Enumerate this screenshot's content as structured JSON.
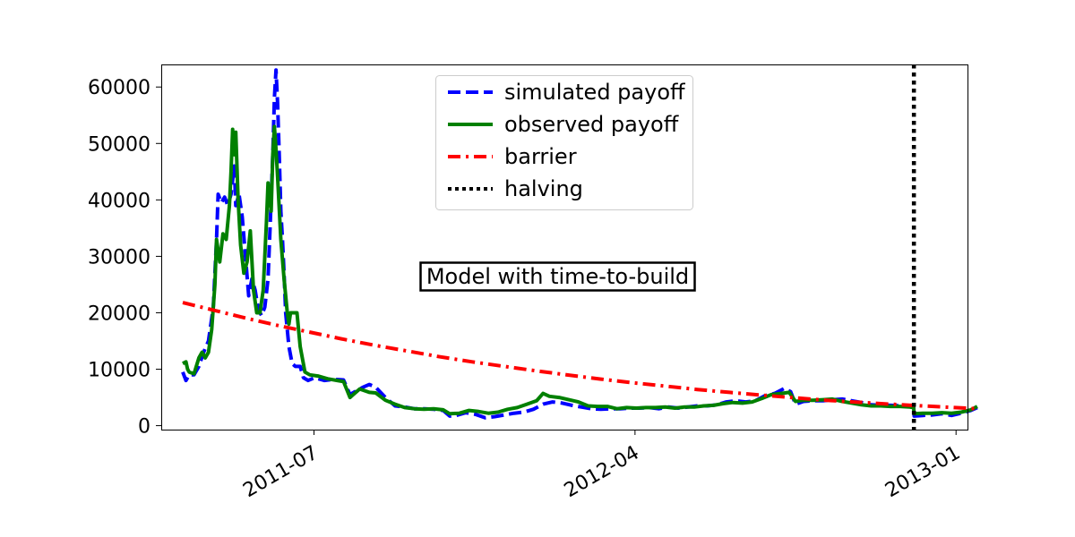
{
  "chart_data": {
    "type": "line",
    "title": "",
    "xlabel": "",
    "ylabel": "",
    "x_range": [
      0,
      23.7
    ],
    "ylim": [
      -700,
      64000
    ],
    "grid": false,
    "y_ticks": [
      {
        "value": 0,
        "label": "0"
      },
      {
        "value": 10000,
        "label": "10000"
      },
      {
        "value": 20000,
        "label": "20000"
      },
      {
        "value": 30000,
        "label": "30000"
      },
      {
        "value": 40000,
        "label": "40000"
      },
      {
        "value": 50000,
        "label": "50000"
      },
      {
        "value": 60000,
        "label": "60000"
      }
    ],
    "x_ticks": [
      {
        "value": 4.08,
        "label": "2011-07"
      },
      {
        "value": 14.06,
        "label": "2012-04"
      },
      {
        "value": 24.04,
        "label": "2013-01"
      }
    ],
    "legend_position": "top-center",
    "annotation": "Model with time-to-build",
    "halving": {
      "x": 22.73,
      "label": "halving",
      "color": "#000000"
    },
    "series": [
      {
        "name": "simulated payoff",
        "color": "#0000ff",
        "style": "dashed",
        "points": [
          [
            0.0,
            9500
          ],
          [
            0.1,
            8000
          ],
          [
            0.2,
            9000
          ],
          [
            0.35,
            9000
          ],
          [
            0.5,
            10500
          ],
          [
            0.65,
            13000
          ],
          [
            0.8,
            15000
          ],
          [
            0.95,
            21000
          ],
          [
            1.05,
            33000
          ],
          [
            1.1,
            41000
          ],
          [
            1.2,
            39500
          ],
          [
            1.3,
            40500
          ],
          [
            1.4,
            39000
          ],
          [
            1.5,
            41000
          ],
          [
            1.6,
            46000
          ],
          [
            1.65,
            39000
          ],
          [
            1.75,
            41000
          ],
          [
            1.85,
            37000
          ],
          [
            1.95,
            30000
          ],
          [
            2.05,
            23000
          ],
          [
            2.15,
            26000
          ],
          [
            2.25,
            24000
          ],
          [
            2.35,
            20500
          ],
          [
            2.45,
            19500
          ],
          [
            2.55,
            21000
          ],
          [
            2.65,
            26000
          ],
          [
            2.72,
            36000
          ],
          [
            2.8,
            48000
          ],
          [
            2.85,
            58000
          ],
          [
            2.9,
            63000
          ],
          [
            2.95,
            57000
          ],
          [
            3.0,
            48000
          ],
          [
            3.05,
            38000
          ],
          [
            3.1,
            33000
          ],
          [
            3.15,
            27000
          ],
          [
            3.2,
            20000
          ],
          [
            3.3,
            14000
          ],
          [
            3.4,
            11000
          ],
          [
            3.5,
            10500
          ],
          [
            3.65,
            10500
          ],
          [
            3.75,
            8500
          ],
          [
            3.9,
            8000
          ],
          [
            4.1,
            8500
          ],
          [
            4.4,
            8000
          ],
          [
            4.7,
            8200
          ],
          [
            5.0,
            8100
          ],
          [
            5.2,
            5500
          ],
          [
            5.35,
            6000
          ],
          [
            5.6,
            6800
          ],
          [
            5.8,
            7300
          ],
          [
            6.0,
            6800
          ],
          [
            6.3,
            5000
          ],
          [
            6.6,
            3500
          ],
          [
            6.9,
            3300
          ],
          [
            7.2,
            3000
          ],
          [
            7.5,
            3000
          ],
          [
            7.8,
            2900
          ],
          [
            8.1,
            2700
          ],
          [
            8.3,
            1700
          ],
          [
            8.5,
            1800
          ],
          [
            8.8,
            2300
          ],
          [
            9.1,
            2000
          ],
          [
            9.4,
            1400
          ],
          [
            9.7,
            1600
          ],
          [
            10.0,
            1900
          ],
          [
            10.3,
            2200
          ],
          [
            10.6,
            2400
          ],
          [
            10.9,
            2900
          ],
          [
            11.2,
            3800
          ],
          [
            11.5,
            4200
          ],
          [
            11.8,
            4000
          ],
          [
            12.1,
            3600
          ],
          [
            12.4,
            3300
          ],
          [
            12.7,
            3000
          ],
          [
            13.0,
            2900
          ],
          [
            13.3,
            3000
          ],
          [
            13.6,
            3000
          ],
          [
            13.9,
            3100
          ],
          [
            14.2,
            3100
          ],
          [
            14.5,
            3200
          ],
          [
            14.8,
            3000
          ],
          [
            15.1,
            3300
          ],
          [
            15.4,
            3100
          ],
          [
            15.7,
            3300
          ],
          [
            16.0,
            3500
          ],
          [
            16.3,
            3500
          ],
          [
            16.6,
            3700
          ],
          [
            16.9,
            4200
          ],
          [
            17.2,
            4400
          ],
          [
            17.5,
            4200
          ],
          [
            17.8,
            4400
          ],
          [
            18.1,
            5300
          ],
          [
            18.4,
            5700
          ],
          [
            18.7,
            6600
          ],
          [
            18.9,
            6000
          ],
          [
            19.05,
            3800
          ],
          [
            19.3,
            4300
          ],
          [
            19.6,
            4400
          ],
          [
            19.9,
            4400
          ],
          [
            20.2,
            4600
          ],
          [
            20.5,
            4700
          ],
          [
            20.8,
            4400
          ],
          [
            21.1,
            4100
          ],
          [
            21.4,
            3700
          ],
          [
            21.7,
            3600
          ],
          [
            22.0,
            3600
          ],
          [
            22.3,
            3500
          ],
          [
            22.6,
            3500
          ],
          [
            22.72,
            3400
          ],
          [
            22.74,
            1700
          ],
          [
            23.0,
            1800
          ],
          [
            23.3,
            1900
          ],
          [
            23.6,
            2100
          ],
          [
            23.9,
            1800
          ],
          [
            24.2,
            2200
          ],
          [
            24.5,
            2700
          ],
          [
            24.7,
            3200
          ]
        ]
      },
      {
        "name": "observed payoff",
        "color": "#008000",
        "style": "solid",
        "points": [
          [
            0.0,
            11000
          ],
          [
            0.1,
            11300
          ],
          [
            0.15,
            10000
          ],
          [
            0.2,
            9500
          ],
          [
            0.35,
            9200
          ],
          [
            0.5,
            12000
          ],
          [
            0.6,
            13000
          ],
          [
            0.7,
            12000
          ],
          [
            0.8,
            13000
          ],
          [
            0.9,
            17000
          ],
          [
            1.0,
            25000
          ],
          [
            1.05,
            33000
          ],
          [
            1.15,
            29000
          ],
          [
            1.25,
            34000
          ],
          [
            1.35,
            33000
          ],
          [
            1.45,
            39000
          ],
          [
            1.5,
            45000
          ],
          [
            1.55,
            52500
          ],
          [
            1.6,
            48000
          ],
          [
            1.65,
            52000
          ],
          [
            1.72,
            40000
          ],
          [
            1.8,
            32000
          ],
          [
            1.9,
            27000
          ],
          [
            2.0,
            29000
          ],
          [
            2.1,
            34500
          ],
          [
            2.2,
            24000
          ],
          [
            2.3,
            20000
          ],
          [
            2.4,
            20000
          ],
          [
            2.5,
            24000
          ],
          [
            2.6,
            36000
          ],
          [
            2.65,
            43000
          ],
          [
            2.75,
            38000
          ],
          [
            2.8,
            48000
          ],
          [
            2.85,
            53000
          ],
          [
            2.9,
            49000
          ],
          [
            2.95,
            44000
          ],
          [
            3.05,
            33000
          ],
          [
            3.15,
            26000
          ],
          [
            3.25,
            20000
          ],
          [
            3.3,
            18000
          ],
          [
            3.35,
            20000
          ],
          [
            3.55,
            20000
          ],
          [
            3.65,
            14000
          ],
          [
            3.8,
            9500
          ],
          [
            3.95,
            9000
          ],
          [
            4.2,
            8800
          ],
          [
            4.5,
            8300
          ],
          [
            4.8,
            8000
          ],
          [
            5.0,
            7800
          ],
          [
            5.2,
            5000
          ],
          [
            5.3,
            5500
          ],
          [
            5.5,
            6500
          ],
          [
            5.8,
            5900
          ],
          [
            6.0,
            5800
          ],
          [
            6.3,
            4500
          ],
          [
            6.6,
            3800
          ],
          [
            6.9,
            3200
          ],
          [
            7.2,
            3000
          ],
          [
            7.5,
            2900
          ],
          [
            7.8,
            3000
          ],
          [
            8.1,
            2800
          ],
          [
            8.3,
            2100
          ],
          [
            8.6,
            2200
          ],
          [
            8.9,
            2700
          ],
          [
            9.2,
            2500
          ],
          [
            9.5,
            2200
          ],
          [
            9.8,
            2400
          ],
          [
            10.1,
            2900
          ],
          [
            10.4,
            3200
          ],
          [
            10.7,
            3800
          ],
          [
            11.0,
            4400
          ],
          [
            11.2,
            5700
          ],
          [
            11.4,
            5200
          ],
          [
            11.7,
            5000
          ],
          [
            12.0,
            4600
          ],
          [
            12.3,
            4200
          ],
          [
            12.6,
            3500
          ],
          [
            12.9,
            3400
          ],
          [
            13.2,
            3400
          ],
          [
            13.5,
            3000
          ],
          [
            13.8,
            3200
          ],
          [
            14.1,
            3100
          ],
          [
            14.4,
            3200
          ],
          [
            14.7,
            3200
          ],
          [
            15.0,
            3300
          ],
          [
            15.3,
            3100
          ],
          [
            15.6,
            3300
          ],
          [
            15.9,
            3300
          ],
          [
            16.2,
            3500
          ],
          [
            16.5,
            3600
          ],
          [
            16.8,
            3900
          ],
          [
            17.1,
            4100
          ],
          [
            17.4,
            4000
          ],
          [
            17.7,
            4200
          ],
          [
            18.0,
            4800
          ],
          [
            18.3,
            5500
          ],
          [
            18.6,
            5700
          ],
          [
            18.85,
            5900
          ],
          [
            19.05,
            4300
          ],
          [
            19.3,
            4500
          ],
          [
            19.6,
            4500
          ],
          [
            19.9,
            4600
          ],
          [
            20.2,
            4700
          ],
          [
            20.5,
            4300
          ],
          [
            20.8,
            4000
          ],
          [
            21.1,
            3700
          ],
          [
            21.4,
            3500
          ],
          [
            21.7,
            3500
          ],
          [
            22.0,
            3400
          ],
          [
            22.3,
            3400
          ],
          [
            22.6,
            3300
          ],
          [
            22.72,
            3200
          ],
          [
            22.74,
            2100
          ],
          [
            23.0,
            2200
          ],
          [
            23.3,
            2200
          ],
          [
            23.6,
            2300
          ],
          [
            23.9,
            2200
          ],
          [
            24.2,
            2400
          ],
          [
            24.5,
            2800
          ],
          [
            24.7,
            3400
          ]
        ]
      },
      {
        "name": "barrier",
        "color": "#ff0000",
        "style": "dashdot",
        "points": [
          [
            0.0,
            21800
          ],
          [
            1.0,
            20400
          ],
          [
            2.0,
            19000
          ],
          [
            3.0,
            17700
          ],
          [
            4.0,
            16500
          ],
          [
            5.0,
            15300
          ],
          [
            6.0,
            14200
          ],
          [
            7.0,
            13200
          ],
          [
            8.0,
            12200
          ],
          [
            9.0,
            11300
          ],
          [
            10.0,
            10500
          ],
          [
            11.0,
            9700
          ],
          [
            12.0,
            8950
          ],
          [
            13.0,
            8250
          ],
          [
            14.0,
            7600
          ],
          [
            15.0,
            7000
          ],
          [
            16.0,
            6400
          ],
          [
            17.0,
            5900
          ],
          [
            18.0,
            5400
          ],
          [
            19.0,
            4950
          ],
          [
            20.0,
            4500
          ],
          [
            21.0,
            4150
          ],
          [
            22.0,
            3800
          ],
          [
            23.0,
            3500
          ],
          [
            24.0,
            3200
          ],
          [
            24.7,
            3000
          ]
        ]
      }
    ]
  }
}
